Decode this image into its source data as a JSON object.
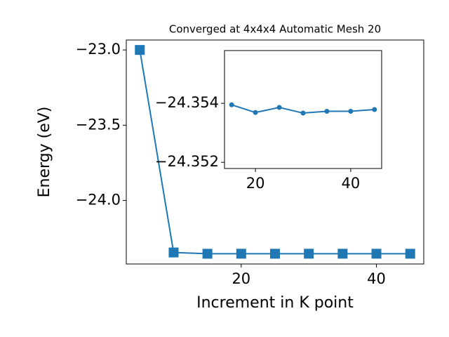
{
  "chart_data": [
    {
      "type": "line",
      "title": "Converged at 4x4x4 Automatic Mesh 20",
      "x_label": "Increment in K point",
      "y_label": "Energy (eV)",
      "x": [
        5,
        10,
        15,
        20,
        25,
        30,
        35,
        40,
        45
      ],
      "series": [
        {
          "name": "Energy",
          "color": "#1f77b4",
          "marker": "square",
          "values": [
            -23.0,
            -24.3455,
            -24.35395,
            -24.35369,
            -24.35386,
            -24.35367,
            -24.35373,
            -24.35373,
            -24.35379
          ]
        }
      ],
      "xlim": [
        3,
        47
      ],
      "xticks": [
        20,
        40
      ],
      "ylim": [
        -24.422,
        -22.934
      ],
      "yticks": [
        {
          "value": -23.0,
          "label": "−23.0"
        },
        {
          "value": -23.5,
          "label": "−23.5"
        },
        {
          "value": -24.0,
          "label": "−24.0"
        }
      ]
    },
    {
      "type": "line",
      "x": [
        15,
        20,
        25,
        30,
        35,
        40,
        45
      ],
      "series": [
        {
          "name": "Energy",
          "color": "#1f77b4",
          "marker": "circle",
          "values": [
            -24.35395,
            -24.35369,
            -24.35386,
            -24.35367,
            -24.35373,
            -24.35373,
            -24.35379
          ]
        }
      ],
      "xlim": [
        13.5,
        46.5
      ],
      "xticks": [
        20,
        40
      ],
      "ylim": [
        -24.35179,
        -24.35579
      ],
      "yticks": [
        {
          "value": -24.354,
          "label": "−24.354"
        },
        {
          "value": -24.352,
          "label": "−24.352"
        }
      ]
    }
  ]
}
